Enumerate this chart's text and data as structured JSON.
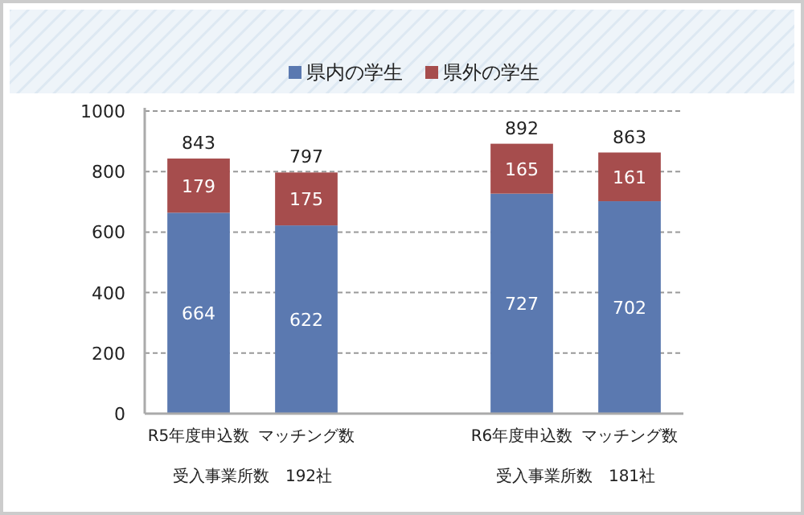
{
  "chart_data": {
    "type": "bar",
    "stacked": true,
    "categories": [
      "R5年度申込数",
      "マッチング数",
      null,
      "R6年度申込数",
      "マッチング数"
    ],
    "series": [
      {
        "name": "県内の学生",
        "color": "#5b79b0",
        "values": [
          664,
          622,
          null,
          727,
          702
        ]
      },
      {
        "name": "県外の学生",
        "color": "#a64d4d",
        "values": [
          179,
          175,
          null,
          165,
          161
        ]
      }
    ],
    "totals": [
      "843",
      "797",
      null,
      "892",
      "863"
    ],
    "data_labels": true,
    "ylim": [
      0,
      1000
    ],
    "yticks": [
      0,
      200,
      400,
      600,
      800,
      1000
    ],
    "grid": "y",
    "legend": "top",
    "annotations": [
      "受入事業所数　192社",
      "受入事業所数　181社"
    ]
  }
}
